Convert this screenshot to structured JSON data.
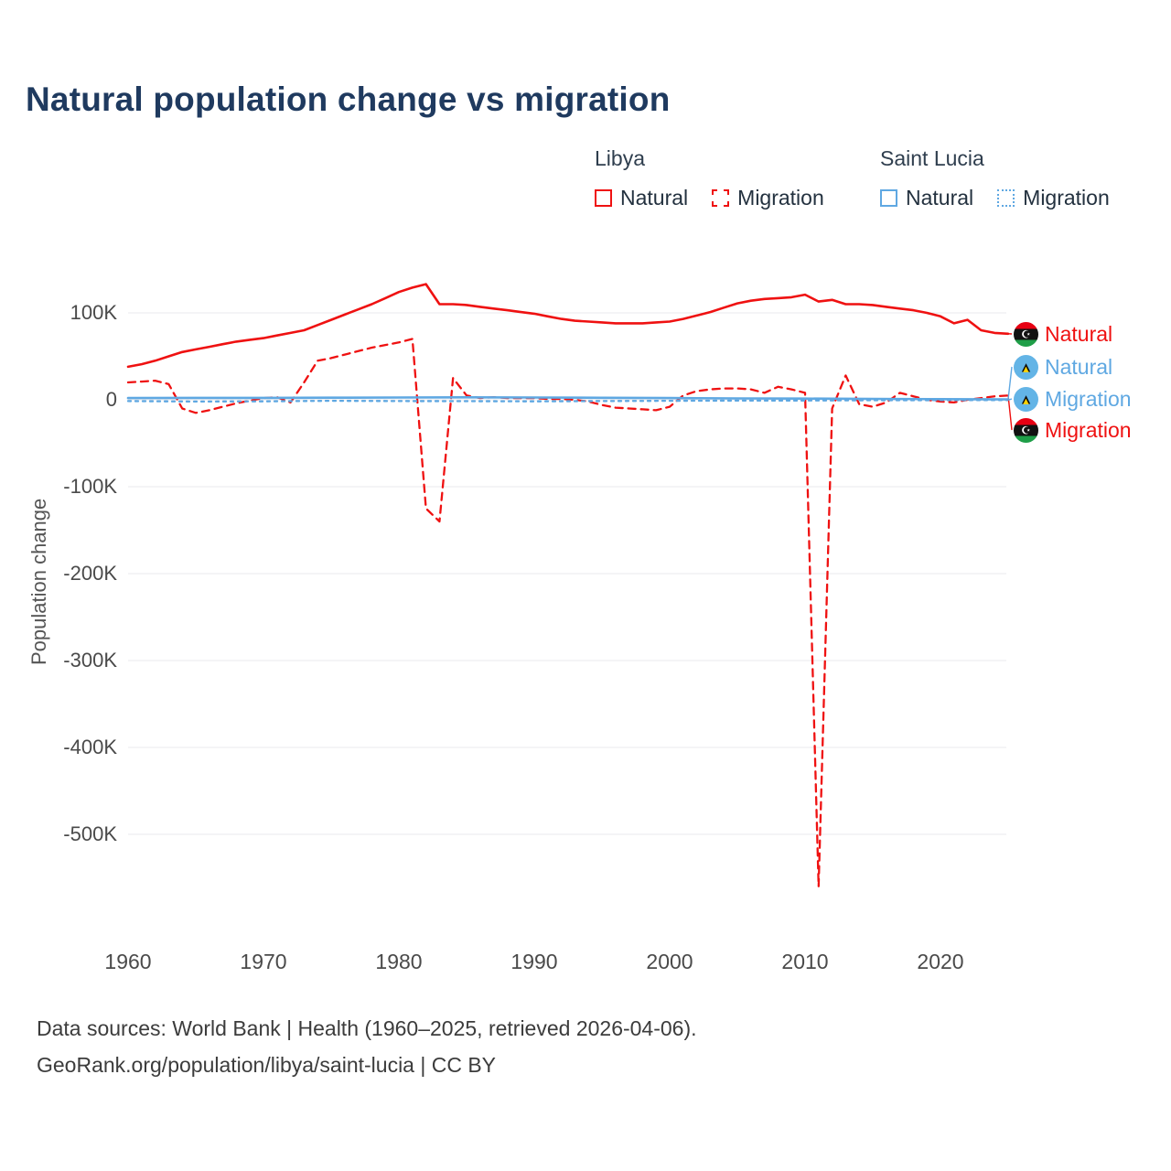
{
  "title": "Natural population change vs migration",
  "y_axis_label": "Population change",
  "legend": {
    "groups": [
      {
        "country": "Libya",
        "entries": [
          {
            "label": "Natural",
            "style": "solid"
          },
          {
            "label": "Migration",
            "style": "dashed"
          }
        ]
      },
      {
        "country": "Saint Lucia",
        "entries": [
          {
            "label": "Natural",
            "style": "solid"
          },
          {
            "label": "Migration",
            "style": "dotted"
          }
        ]
      }
    ]
  },
  "line_labels": [
    {
      "text": "Natural",
      "country": "Libya",
      "color": "red"
    },
    {
      "text": "Natural",
      "country": "Saint Lucia",
      "color": "blue"
    },
    {
      "text": "Migration",
      "country": "Saint Lucia",
      "color": "blue"
    },
    {
      "text": "Migration",
      "country": "Libya",
      "color": "red"
    }
  ],
  "footer": {
    "line1": "Data sources: World Bank | Health (1960–2025, retrieved 2026-04-06).",
    "line2": "GeoRank.org/population/libya/saint-lucia | CC BY"
  },
  "colors": {
    "libya_red": "#ef1111",
    "saint_lucia_blue": "#5fa8e2",
    "title": "#1f3a5f",
    "axis_text": "#4a4a4a",
    "grid": "#e9e9ec",
    "footer_text": "#3c3c3c"
  },
  "chart_data": {
    "type": "line",
    "title": "Natural population change vs migration",
    "xlabel": "",
    "ylabel": "Population change",
    "value_unit": "thousands of people (K)",
    "xlim": [
      1960,
      2025
    ],
    "ylim": [
      -600,
      145
    ],
    "grid": "horizontal",
    "legend_position": "top-right",
    "x_axis": {
      "ticks": [
        1960,
        1970,
        1980,
        1990,
        2000,
        2010,
        2020
      ]
    },
    "y_axis": {
      "ticks": [
        {
          "value": 100,
          "label": "100K"
        },
        {
          "value": 0,
          "label": "0"
        },
        {
          "value": -100,
          "label": "-100K"
        },
        {
          "value": -200,
          "label": "-200K"
        },
        {
          "value": -300,
          "label": "-300K"
        },
        {
          "value": -400,
          "label": "-400K"
        },
        {
          "value": -500,
          "label": "-500K"
        }
      ]
    },
    "series": [
      {
        "name": "Libya Natural",
        "country": "Libya",
        "metric": "Natural",
        "color": "#ef1111",
        "dash": "",
        "width": 2.6,
        "x_range": [
          1960,
          2025
        ],
        "values": [
          38,
          41,
          45,
          50,
          55,
          58,
          61,
          64,
          67,
          69,
          71,
          74,
          77,
          80,
          86,
          92,
          98,
          104,
          110,
          117,
          124,
          129,
          133,
          110,
          110,
          109,
          107,
          105,
          103,
          101,
          99,
          96,
          93,
          91,
          90,
          89,
          88,
          88,
          88,
          89,
          90,
          93,
          97,
          101,
          106,
          111,
          114,
          116,
          117,
          118,
          121,
          113,
          115,
          110,
          110,
          109,
          107,
          105,
          103,
          100,
          96,
          88,
          92,
          80,
          77,
          76
        ]
      },
      {
        "name": "Libya Migration",
        "country": "Libya",
        "metric": "Migration",
        "color": "#ef1111",
        "dash": "8 6",
        "width": 2.3,
        "x_range": [
          1960,
          2025
        ],
        "values": [
          20,
          21,
          22,
          18,
          -10,
          -15,
          -12,
          -8,
          -4,
          -1,
          2,
          3,
          -3,
          20,
          45,
          48,
          52,
          56,
          60,
          63,
          66,
          70,
          -125,
          -140,
          25,
          5,
          2,
          3,
          2,
          2,
          2,
          1,
          1,
          0,
          -2,
          -6,
          -9,
          -10,
          -11,
          -12,
          -8,
          5,
          10,
          12,
          13,
          13,
          12,
          8,
          15,
          12,
          8,
          -560,
          -10,
          28,
          -5,
          -8,
          -3,
          8,
          4,
          0,
          -2,
          -3,
          0,
          2,
          4,
          5
        ]
      },
      {
        "name": "Saint Lucia Natural",
        "country": "Saint Lucia",
        "metric": "Natural",
        "color": "#5fa8e2",
        "dash": "",
        "width": 2.6,
        "x": [
          1960,
          1965,
          1970,
          1975,
          1980,
          1985,
          1990,
          1995,
          2000,
          2005,
          2010,
          2015,
          2020,
          2025
        ],
        "values": [
          2.0,
          2.2,
          2.2,
          2.4,
          2.6,
          2.8,
          2.6,
          2.3,
          2.0,
          1.6,
          1.4,
          1.1,
          0.7,
          0.4
        ]
      },
      {
        "name": "Saint Lucia Migration",
        "country": "Saint Lucia",
        "metric": "Migration",
        "color": "#5fa8e2",
        "dash": "3 5",
        "width": 2.3,
        "x": [
          1960,
          1965,
          1970,
          1975,
          1980,
          1985,
          1990,
          1995,
          2000,
          2005,
          2010,
          2015,
          2020,
          2025
        ],
        "values": [
          -1.5,
          -2.0,
          -1.8,
          -1.2,
          -1.5,
          -1.6,
          -1.8,
          -1.5,
          -1.2,
          -1.0,
          -0.8,
          -0.5,
          -0.4,
          -0.3
        ]
      }
    ]
  }
}
